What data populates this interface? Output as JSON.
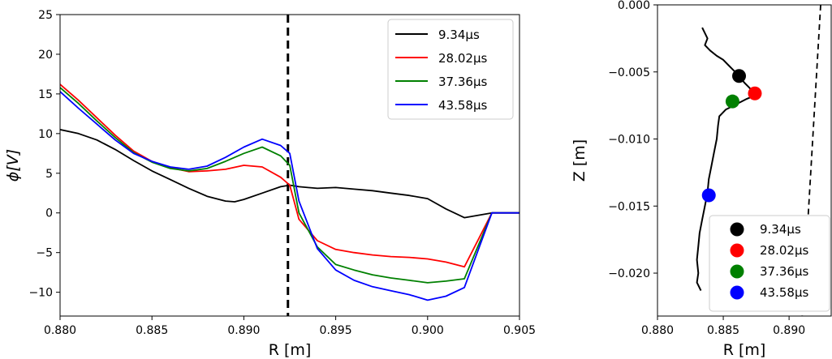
{
  "chart_data": [
    {
      "type": "line",
      "xlabel": "R [m]",
      "ylabel": "ϕ[V]",
      "xlim": [
        0.88,
        0.905
      ],
      "ylim": [
        -13,
        25
      ],
      "xticks": [
        "0.880",
        "0.885",
        "0.890",
        "0.895",
        "0.900",
        "0.905"
      ],
      "xtick_values": [
        0.88,
        0.885,
        0.89,
        0.895,
        0.9,
        0.905
      ],
      "yticks": [
        "25",
        "20",
        "15",
        "10",
        "5",
        "0",
        "−5",
        "−10"
      ],
      "ytick_values": [
        25,
        20,
        15,
        10,
        5,
        0,
        -5,
        -10
      ],
      "grid": false,
      "legend": "top-right",
      "vline": {
        "x": 0.8924,
        "style": "dashed",
        "color": "#000000"
      },
      "series": [
        {
          "name": "9.34μs",
          "color": "#000000",
          "x": [
            0.88,
            0.881,
            0.882,
            0.883,
            0.884,
            0.885,
            0.886,
            0.887,
            0.888,
            0.889,
            0.8895,
            0.89,
            0.891,
            0.892,
            0.8925,
            0.893,
            0.894,
            0.895,
            0.896,
            0.897,
            0.898,
            0.899,
            0.9,
            0.901,
            0.902,
            0.9035,
            0.905
          ],
          "y": [
            10.5,
            10.0,
            9.2,
            8.0,
            6.6,
            5.3,
            4.2,
            3.1,
            2.1,
            1.5,
            1.4,
            1.7,
            2.5,
            3.3,
            3.5,
            3.3,
            3.1,
            3.2,
            3.0,
            2.8,
            2.5,
            2.2,
            1.8,
            0.5,
            -0.6,
            0.0,
            0.0
          ]
        },
        {
          "name": "28.02μs",
          "color": "#ff0000",
          "x": [
            0.88,
            0.881,
            0.882,
            0.883,
            0.884,
            0.885,
            0.886,
            0.887,
            0.888,
            0.889,
            0.89,
            0.891,
            0.892,
            0.8925,
            0.893,
            0.894,
            0.895,
            0.896,
            0.897,
            0.898,
            0.899,
            0.9,
            0.901,
            0.902,
            0.9035,
            0.905
          ],
          "y": [
            16.2,
            14.2,
            12.0,
            9.8,
            7.8,
            6.5,
            5.7,
            5.2,
            5.3,
            5.5,
            6.0,
            5.8,
            4.5,
            3.5,
            -0.8,
            -3.5,
            -4.6,
            -5.0,
            -5.3,
            -5.5,
            -5.6,
            -5.8,
            -6.2,
            -6.8,
            0.0,
            0.0
          ]
        },
        {
          "name": "37.36μs",
          "color": "#008000",
          "x": [
            0.88,
            0.881,
            0.882,
            0.883,
            0.884,
            0.885,
            0.886,
            0.887,
            0.888,
            0.889,
            0.89,
            0.891,
            0.892,
            0.8925,
            0.893,
            0.894,
            0.895,
            0.896,
            0.897,
            0.898,
            0.899,
            0.9,
            0.901,
            0.902,
            0.9035,
            0.905
          ],
          "y": [
            15.8,
            13.8,
            11.6,
            9.5,
            7.6,
            6.4,
            5.6,
            5.3,
            5.6,
            6.5,
            7.5,
            8.3,
            7.2,
            6.0,
            0.0,
            -4.3,
            -6.5,
            -7.2,
            -7.8,
            -8.2,
            -8.5,
            -8.8,
            -8.6,
            -8.3,
            0.0,
            0.0
          ]
        },
        {
          "name": "43.58μs",
          "color": "#0000ff",
          "x": [
            0.88,
            0.881,
            0.882,
            0.883,
            0.884,
            0.885,
            0.886,
            0.887,
            0.888,
            0.889,
            0.89,
            0.891,
            0.892,
            0.8925,
            0.893,
            0.894,
            0.895,
            0.896,
            0.897,
            0.898,
            0.899,
            0.9,
            0.901,
            0.902,
            0.9035,
            0.905
          ],
          "y": [
            15.3,
            13.2,
            11.2,
            9.2,
            7.5,
            6.5,
            5.8,
            5.5,
            5.9,
            7.0,
            8.3,
            9.3,
            8.5,
            7.5,
            1.5,
            -4.5,
            -7.2,
            -8.5,
            -9.3,
            -9.8,
            -10.3,
            -11.0,
            -10.5,
            -9.4,
            0.0,
            0.0
          ]
        }
      ]
    },
    {
      "type": "scatter",
      "xlabel": "R [m]",
      "ylabel": "Z [m]",
      "xlim": [
        0.88,
        0.8932
      ],
      "ylim": [
        -0.0232,
        0.0
      ],
      "xticks": [
        "0.880",
        "0.885",
        "0.890"
      ],
      "xtick_values": [
        0.88,
        0.885,
        0.89
      ],
      "yticks": [
        "0.000",
        "−0.005",
        "−0.010",
        "−0.015",
        "−0.020"
      ],
      "ytick_values": [
        0.0,
        -0.005,
        -0.01,
        -0.015,
        -0.02
      ],
      "grid": false,
      "legend": "bottom-right",
      "trajectory": {
        "color": "#000000",
        "r": [
          0.8834,
          0.8838,
          0.8836,
          0.884,
          0.8845,
          0.885,
          0.8854,
          0.8858,
          0.8862,
          0.8866,
          0.887,
          0.8872,
          0.8874,
          0.8873,
          0.8868,
          0.886,
          0.8852,
          0.8847,
          0.8846,
          0.8845,
          0.8843,
          0.8841,
          0.8839,
          0.8838,
          0.8836,
          0.8834,
          0.8832,
          0.8831,
          0.883,
          0.8831,
          0.883,
          0.8833
        ],
        "z": [
          -0.0017,
          -0.0025,
          -0.003,
          -0.0034,
          -0.0038,
          -0.0041,
          -0.0045,
          -0.0049,
          -0.0053,
          -0.0058,
          -0.0062,
          -0.0065,
          -0.0067,
          -0.0068,
          -0.007,
          -0.0074,
          -0.0078,
          -0.0083,
          -0.009,
          -0.01,
          -0.011,
          -0.012,
          -0.013,
          -0.014,
          -0.015,
          -0.016,
          -0.017,
          -0.018,
          -0.019,
          -0.02,
          -0.0207,
          -0.0213
        ]
      },
      "boundary": {
        "style": "dashed",
        "color": "#000000",
        "r": [
          0.8924,
          0.891
        ],
        "z": [
          0.0,
          -0.0232
        ]
      },
      "points": [
        {
          "name": "9.34μs",
          "color": "#000000",
          "r": 0.8862,
          "z": -0.0053
        },
        {
          "name": "28.02μs",
          "color": "#ff0000",
          "r": 0.8874,
          "z": -0.0066
        },
        {
          "name": "37.36μs",
          "color": "#008000",
          "r": 0.8857,
          "z": -0.0072
        },
        {
          "name": "43.58μs",
          "color": "#0000ff",
          "r": 0.8839,
          "z": -0.0142
        }
      ]
    }
  ]
}
